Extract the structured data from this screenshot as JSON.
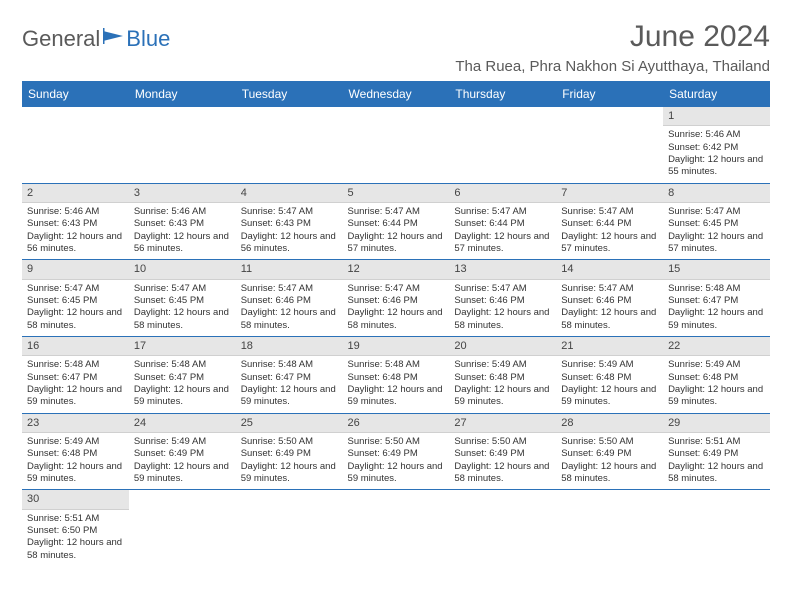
{
  "logo": {
    "part1": "General",
    "part2": "Blue"
  },
  "title": "June 2024",
  "location": "Tha Ruea, Phra Nakhon Si Ayutthaya, Thailand",
  "colors": {
    "header_bg": "#2b71b8",
    "header_text": "#ffffff",
    "daynum_bg": "#e6e6e6",
    "border": "#2b71b8",
    "text": "#333333",
    "logo_gray": "#5a5a5a",
    "logo_blue": "#2b71b8"
  },
  "weekdays": [
    "Sunday",
    "Monday",
    "Tuesday",
    "Wednesday",
    "Thursday",
    "Friday",
    "Saturday"
  ],
  "weeks": [
    [
      null,
      null,
      null,
      null,
      null,
      null,
      {
        "d": "1",
        "rise": "5:46 AM",
        "set": "6:42 PM",
        "daylight": "12 hours and 55 minutes."
      }
    ],
    [
      {
        "d": "2",
        "rise": "5:46 AM",
        "set": "6:43 PM",
        "daylight": "12 hours and 56 minutes."
      },
      {
        "d": "3",
        "rise": "5:46 AM",
        "set": "6:43 PM",
        "daylight": "12 hours and 56 minutes."
      },
      {
        "d": "4",
        "rise": "5:47 AM",
        "set": "6:43 PM",
        "daylight": "12 hours and 56 minutes."
      },
      {
        "d": "5",
        "rise": "5:47 AM",
        "set": "6:44 PM",
        "daylight": "12 hours and 57 minutes."
      },
      {
        "d": "6",
        "rise": "5:47 AM",
        "set": "6:44 PM",
        "daylight": "12 hours and 57 minutes."
      },
      {
        "d": "7",
        "rise": "5:47 AM",
        "set": "6:44 PM",
        "daylight": "12 hours and 57 minutes."
      },
      {
        "d": "8",
        "rise": "5:47 AM",
        "set": "6:45 PM",
        "daylight": "12 hours and 57 minutes."
      }
    ],
    [
      {
        "d": "9",
        "rise": "5:47 AM",
        "set": "6:45 PM",
        "daylight": "12 hours and 58 minutes."
      },
      {
        "d": "10",
        "rise": "5:47 AM",
        "set": "6:45 PM",
        "daylight": "12 hours and 58 minutes."
      },
      {
        "d": "11",
        "rise": "5:47 AM",
        "set": "6:46 PM",
        "daylight": "12 hours and 58 minutes."
      },
      {
        "d": "12",
        "rise": "5:47 AM",
        "set": "6:46 PM",
        "daylight": "12 hours and 58 minutes."
      },
      {
        "d": "13",
        "rise": "5:47 AM",
        "set": "6:46 PM",
        "daylight": "12 hours and 58 minutes."
      },
      {
        "d": "14",
        "rise": "5:47 AM",
        "set": "6:46 PM",
        "daylight": "12 hours and 58 minutes."
      },
      {
        "d": "15",
        "rise": "5:48 AM",
        "set": "6:47 PM",
        "daylight": "12 hours and 59 minutes."
      }
    ],
    [
      {
        "d": "16",
        "rise": "5:48 AM",
        "set": "6:47 PM",
        "daylight": "12 hours and 59 minutes."
      },
      {
        "d": "17",
        "rise": "5:48 AM",
        "set": "6:47 PM",
        "daylight": "12 hours and 59 minutes."
      },
      {
        "d": "18",
        "rise": "5:48 AM",
        "set": "6:47 PM",
        "daylight": "12 hours and 59 minutes."
      },
      {
        "d": "19",
        "rise": "5:48 AM",
        "set": "6:48 PM",
        "daylight": "12 hours and 59 minutes."
      },
      {
        "d": "20",
        "rise": "5:49 AM",
        "set": "6:48 PM",
        "daylight": "12 hours and 59 minutes."
      },
      {
        "d": "21",
        "rise": "5:49 AM",
        "set": "6:48 PM",
        "daylight": "12 hours and 59 minutes."
      },
      {
        "d": "22",
        "rise": "5:49 AM",
        "set": "6:48 PM",
        "daylight": "12 hours and 59 minutes."
      }
    ],
    [
      {
        "d": "23",
        "rise": "5:49 AM",
        "set": "6:48 PM",
        "daylight": "12 hours and 59 minutes."
      },
      {
        "d": "24",
        "rise": "5:49 AM",
        "set": "6:49 PM",
        "daylight": "12 hours and 59 minutes."
      },
      {
        "d": "25",
        "rise": "5:50 AM",
        "set": "6:49 PM",
        "daylight": "12 hours and 59 minutes."
      },
      {
        "d": "26",
        "rise": "5:50 AM",
        "set": "6:49 PM",
        "daylight": "12 hours and 59 minutes."
      },
      {
        "d": "27",
        "rise": "5:50 AM",
        "set": "6:49 PM",
        "daylight": "12 hours and 58 minutes."
      },
      {
        "d": "28",
        "rise": "5:50 AM",
        "set": "6:49 PM",
        "daylight": "12 hours and 58 minutes."
      },
      {
        "d": "29",
        "rise": "5:51 AM",
        "set": "6:49 PM",
        "daylight": "12 hours and 58 minutes."
      }
    ],
    [
      {
        "d": "30",
        "rise": "5:51 AM",
        "set": "6:50 PM",
        "daylight": "12 hours and 58 minutes."
      },
      null,
      null,
      null,
      null,
      null,
      null
    ]
  ],
  "labels": {
    "sunrise": "Sunrise: ",
    "sunset": "Sunset: ",
    "daylight": "Daylight: "
  }
}
